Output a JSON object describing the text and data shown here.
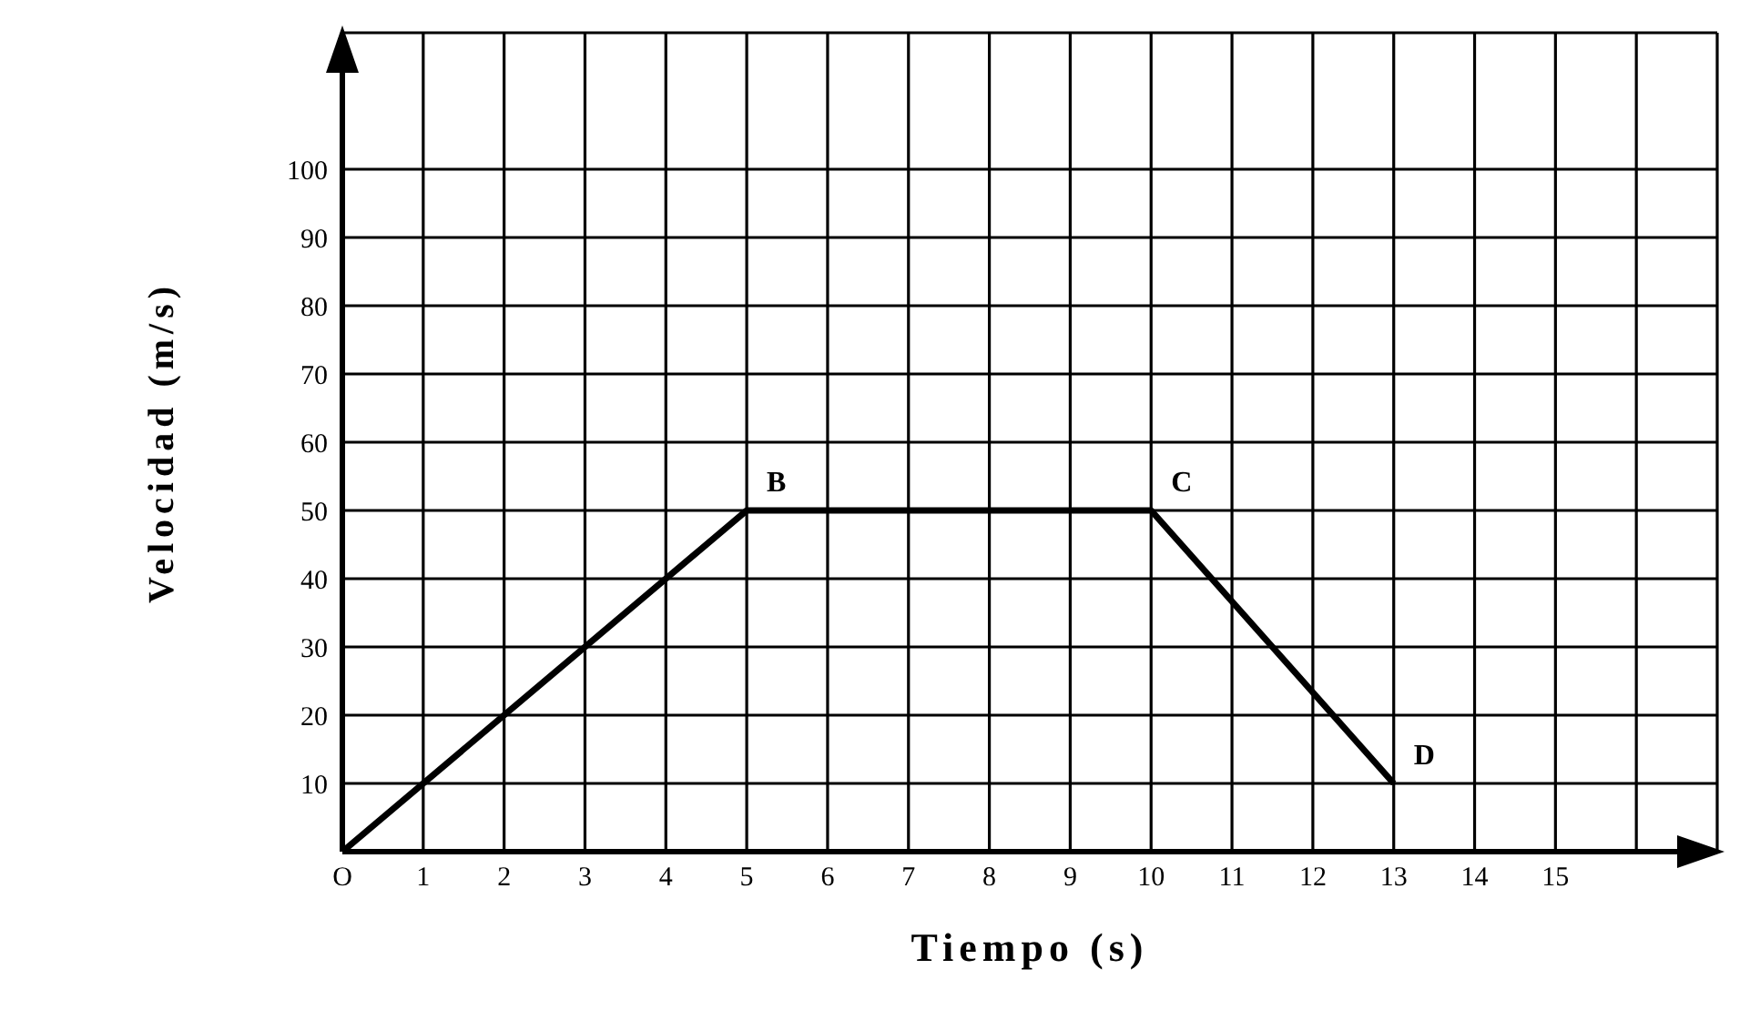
{
  "chart_data": {
    "type": "line",
    "xlabel": "Tiempo (s)",
    "ylabel": "Velocidad (m/s)",
    "x": [
      0,
      5,
      10,
      13
    ],
    "series": [
      {
        "color": "#000000",
        "values": [
          0,
          50,
          50,
          10
        ]
      }
    ],
    "xlim": [
      0,
      17
    ],
    "xticks": [
      {
        "value": 0,
        "label": "O"
      },
      1,
      2,
      3,
      4,
      5,
      6,
      7,
      8,
      9,
      10,
      11,
      12,
      13,
      14,
      15,
      {
        "value": 16,
        "label": null
      }
    ],
    "ylim": [
      0,
      120
    ],
    "yticks": [
      10,
      20,
      30,
      40,
      50,
      60,
      70,
      80,
      90,
      100
    ],
    "grid": true,
    "marker": "none",
    "line_style": "solid",
    "legend": false,
    "annotations": [
      {
        "text": "B",
        "x": 5,
        "y": 50
      },
      {
        "text": "C",
        "x": 10,
        "y": 50
      },
      {
        "text": "D",
        "x": 13,
        "y": 10
      }
    ]
  }
}
